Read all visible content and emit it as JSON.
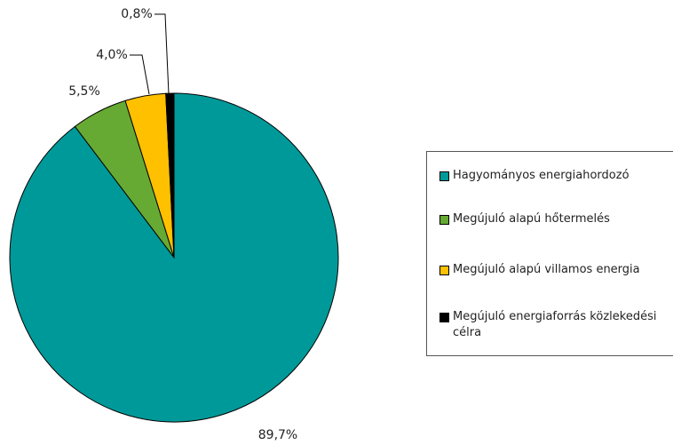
{
  "chart_data": {
    "type": "pie",
    "categories": [
      "Hagyományos energiahordozó",
      "Megújuló alapú hőtermelés",
      "Megújuló alapú villamos energia",
      "Megújuló energiaforrás közlekedési célra"
    ],
    "values": [
      89.7,
      5.5,
      4.0,
      0.8
    ],
    "value_labels": [
      "89,7%",
      "5,5%",
      "4,0%",
      "0,8%"
    ],
    "colors": [
      "#009999",
      "#66aa33",
      "#ffc000",
      "#000000"
    ],
    "legend": "right"
  }
}
